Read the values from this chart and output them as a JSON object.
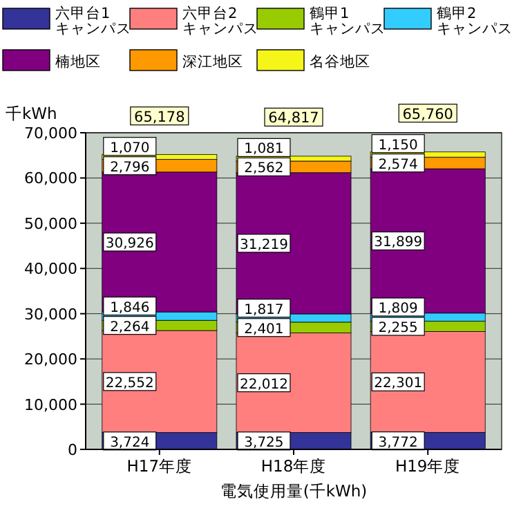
{
  "chart_data": {
    "type": "bar",
    "stacked": true,
    "ylabel": "千kWh",
    "xlabel": "電気使用量(千kWh)",
    "categories": [
      "H17年度",
      "H18年度",
      "H19年度"
    ],
    "series": [
      {
        "name": "六甲台1キャンパス",
        "color": "#333399",
        "values": [
          3724,
          3725,
          3772
        ],
        "value_labels": [
          "3,724",
          "3,725",
          "3,772"
        ]
      },
      {
        "name": "六甲台2キャンパス",
        "color": "#ff7f7f",
        "values": [
          22552,
          22012,
          22301
        ],
        "value_labels": [
          "22,552",
          "22,012",
          "22,301"
        ]
      },
      {
        "name": "鶴甲1キャンパス",
        "color": "#99cc00",
        "values": [
          2264,
          2401,
          2255
        ],
        "value_labels": [
          "2,264",
          "2,401",
          "2,255"
        ]
      },
      {
        "name": "鶴甲2キャンパス",
        "color": "#33ccff",
        "values": [
          1846,
          1817,
          1809
        ],
        "value_labels": [
          "1,846",
          "1,817",
          "1,809"
        ]
      },
      {
        "name": "楠地区",
        "color": "#800080",
        "values": [
          30926,
          31219,
          31899
        ],
        "value_labels": [
          "30,926",
          "31,219",
          "31,899"
        ]
      },
      {
        "name": "深江地区",
        "color": "#ff9900",
        "values": [
          2796,
          2562,
          2574
        ],
        "value_labels": [
          "2,796",
          "2,562",
          "2,574"
        ]
      },
      {
        "name": "名谷地区",
        "color": "#f5f51a",
        "values": [
          1070,
          1081,
          1150
        ],
        "value_labels": [
          "1,070",
          "1,081",
          "1,150"
        ]
      }
    ],
    "totals": [
      "65,178",
      "64,817",
      "65,760"
    ],
    "ylim": [
      0,
      70000
    ],
    "yticks": [
      {
        "value": 0,
        "label": "0"
      },
      {
        "value": 10000,
        "label": "10,000"
      },
      {
        "value": 20000,
        "label": "20,000"
      },
      {
        "value": 30000,
        "label": "30,000"
      },
      {
        "value": 40000,
        "label": "40,000"
      },
      {
        "value": 50000,
        "label": "50,000"
      },
      {
        "value": 60000,
        "label": "60,000"
      },
      {
        "value": 70000,
        "label": "70,000"
      }
    ],
    "grid": "y",
    "legend": "top"
  }
}
